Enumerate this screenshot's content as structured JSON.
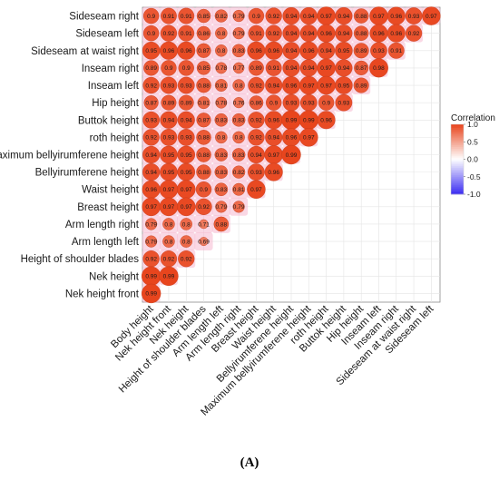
{
  "figure": {
    "panel_label": "(A)"
  },
  "chart_data": {
    "type": "heatmap",
    "style": "lower-triangular correlation matrix, circle size and color encode correlation",
    "variables": [
      "Nek height front",
      "Nek height",
      "Height of shoulder blades",
      "Arm length left",
      "Arm length right",
      "Breast height",
      "Waist height",
      "Bellyirumferene height",
      "Maximum bellyirumferene height",
      "roth height",
      "Buttok  height",
      "Hip height",
      "Inseam left",
      "Inseam right",
      "Sideseam at waist right",
      "Sideseam left",
      "Sideseam right"
    ],
    "row_labels": [
      "Sideseam right",
      "Sideseam left",
      "Sideseam at waist right",
      "Inseam right",
      "Inseam left",
      "Hip height",
      "Buttok  height",
      "roth height",
      "Maximum bellyirumferene height",
      "Bellyirumferene height",
      "Waist height",
      "Breast height",
      "Arm length right",
      "Arm length left",
      "Height of shoulder blades",
      "Nek height",
      "Nek height front"
    ],
    "column_labels": [
      "Body height",
      "Nek height front",
      "Nek height",
      "Height of shoulder blades",
      "Arm length left",
      "Arm length right",
      "Breast height",
      "Waist height",
      "Bellyirumferene height",
      "Maximum bellyirumferene height",
      "roth height",
      "Buttok  height",
      "Hip height",
      "Inseam left",
      "Inseam right",
      "Sideseam at waist right",
      "Sideseam left"
    ],
    "values": [
      [
        "Sideseam right",
        [
          0.9,
          0.91,
          0.91,
          0.85,
          0.82,
          0.79,
          0.9,
          0.92,
          0.94,
          0.94,
          0.97,
          0.94,
          0.88,
          0.97,
          0.96,
          0.93,
          0.97
        ]
      ],
      [
        "Sideseam left",
        [
          0.9,
          0.92,
          0.91,
          0.86,
          0.8,
          0.79,
          0.91,
          0.92,
          0.94,
          0.94,
          0.96,
          0.94,
          0.88,
          0.96,
          0.96,
          0.92
        ]
      ],
      [
        "Sideseam at waist right",
        [
          0.95,
          0.96,
          0.96,
          0.87,
          0.8,
          0.83,
          0.96,
          0.96,
          0.94,
          0.96,
          0.94,
          0.95,
          0.89,
          0.93,
          0.91
        ]
      ],
      [
        "Inseam right",
        [
          0.89,
          0.9,
          0.9,
          0.85,
          0.78,
          0.77,
          0.89,
          0.91,
          0.94,
          0.94,
          0.97,
          0.94,
          0.87,
          0.98
        ]
      ],
      [
        "Inseam left",
        [
          0.92,
          0.93,
          0.93,
          0.88,
          0.81,
          0.8,
          0.92,
          0.94,
          0.96,
          0.97,
          0.97,
          0.95,
          0.89
        ]
      ],
      [
        "Hip height",
        [
          0.87,
          0.89,
          0.89,
          0.81,
          0.78,
          0.76,
          0.86,
          0.9,
          0.93,
          0.93,
          0.9,
          0.93
        ]
      ],
      [
        "Buttok  height",
        [
          0.93,
          0.94,
          0.94,
          0.87,
          0.83,
          0.83,
          0.92,
          0.96,
          0.99,
          0.99,
          0.96
        ]
      ],
      [
        "roth height",
        [
          0.92,
          0.93,
          0.93,
          0.88,
          0.8,
          0.8,
          0.92,
          0.94,
          0.96,
          0.97
        ]
      ],
      [
        "Maximum bellyirumferene height",
        [
          0.94,
          0.95,
          0.95,
          0.88,
          0.83,
          0.83,
          0.94,
          0.97,
          0.99
        ]
      ],
      [
        "Bellyirumferene height",
        [
          0.94,
          0.95,
          0.95,
          0.88,
          0.83,
          0.82,
          0.93,
          0.96
        ]
      ],
      [
        "Waist height",
        [
          0.96,
          0.97,
          0.97,
          0.9,
          0.83,
          0.81,
          0.97
        ]
      ],
      [
        "Breast height",
        [
          0.97,
          0.97,
          0.97,
          0.92,
          0.79,
          0.79
        ]
      ],
      [
        "Arm length right",
        [
          0.79,
          0.8,
          0.8,
          0.71,
          0.88
        ]
      ],
      [
        "Arm length left",
        [
          0.79,
          0.8,
          0.8,
          0.69
        ]
      ],
      [
        "Height of shoulder blades",
        [
          0.92,
          0.92,
          0.92
        ]
      ],
      [
        "Nek height",
        [
          0.99,
          0.99
        ]
      ],
      [
        "Nek height front",
        [
          0.99
        ]
      ]
    ],
    "legend": {
      "title": "Correlation",
      "ticks": [
        "1.0",
        "0.5",
        "0.0",
        "-0.5",
        "-1.0"
      ],
      "range": [
        -1,
        1
      ],
      "colors": {
        "negative": "#3b2cf2",
        "zero": "#ffffff",
        "positive": "#e8431b"
      },
      "placement": "right"
    },
    "colors": {
      "panel_border": "#8a8a8a",
      "grid": "#e4e4e4",
      "halo": "#f5b8d0"
    }
  }
}
